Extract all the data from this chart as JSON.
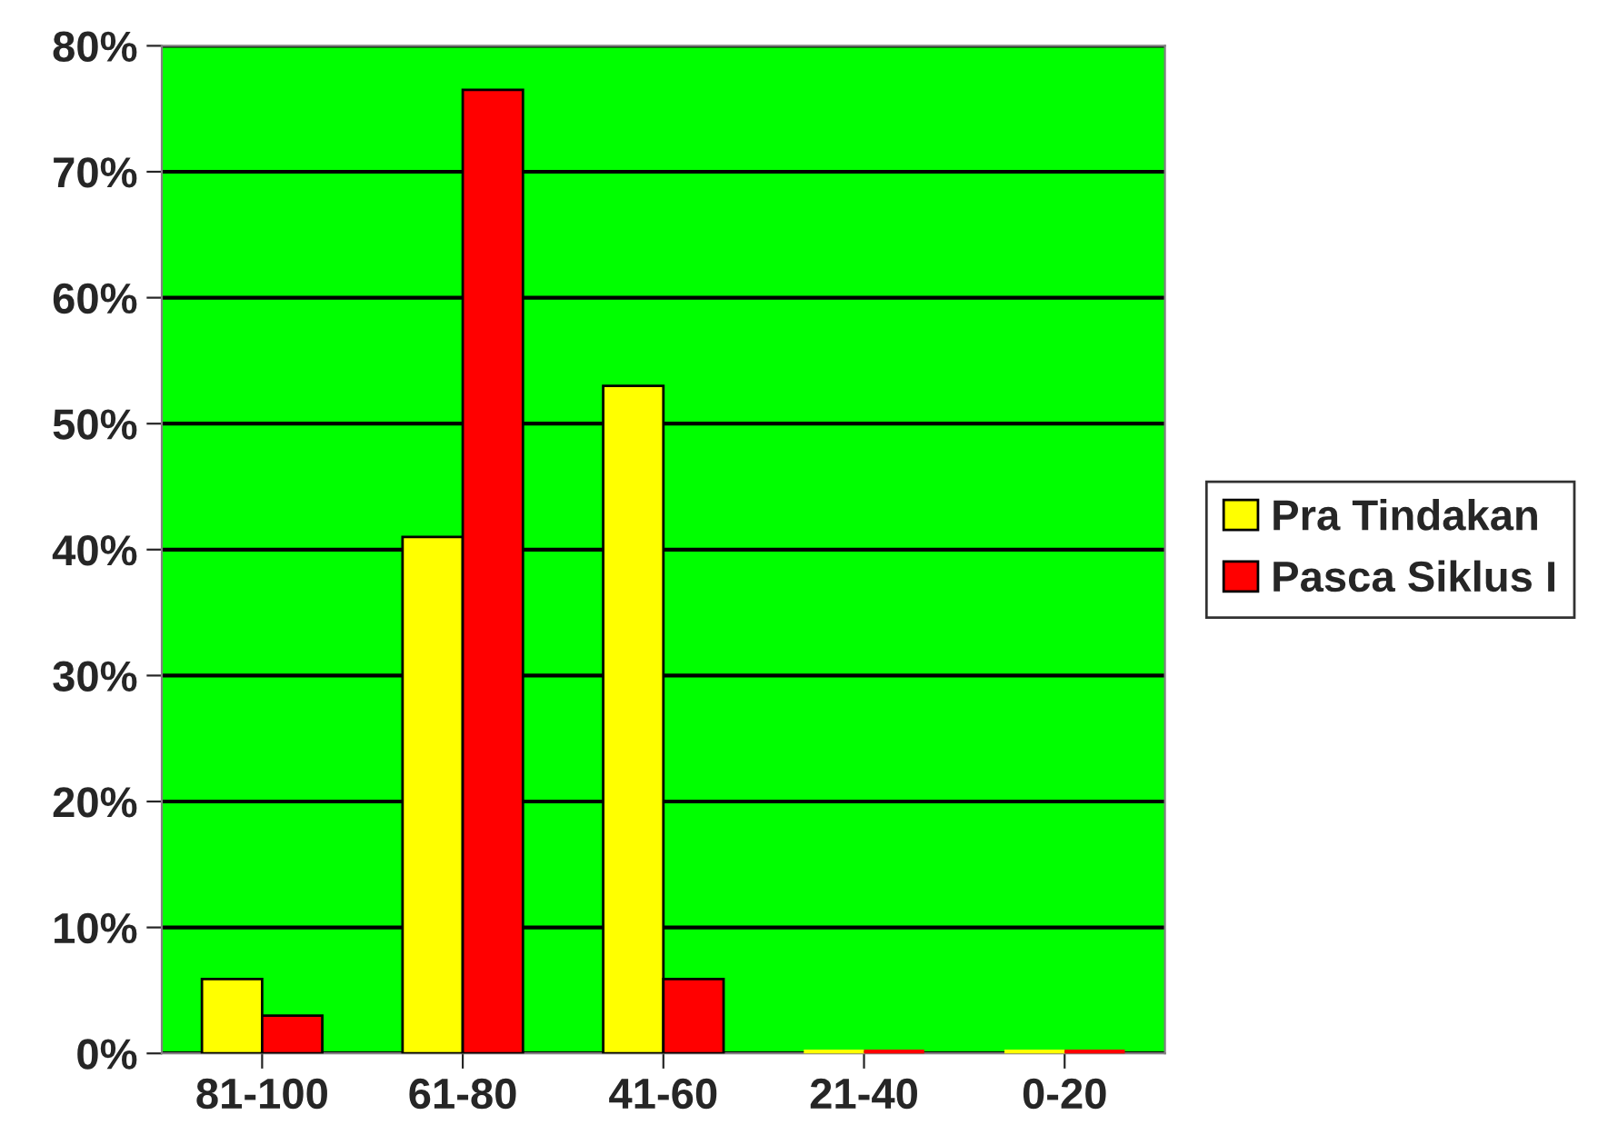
{
  "chart_data": {
    "type": "bar",
    "categories": [
      "81-100",
      "61-80",
      "41-60",
      "21-40",
      "0-20"
    ],
    "series": [
      {
        "name": "Pra Tindakan",
        "color": "#ffff00",
        "values": [
          5.9,
          41,
          53,
          0,
          0
        ]
      },
      {
        "name": "Pasca Siklus I",
        "color": "#ff0000",
        "values": [
          3,
          76.5,
          5.9,
          0,
          0
        ]
      }
    ],
    "ylim": [
      0,
      80
    ],
    "yticks": [
      {
        "value": 0,
        "label": "0%"
      },
      {
        "value": 10,
        "label": "10%"
      },
      {
        "value": 20,
        "label": "20%"
      },
      {
        "value": 30,
        "label": "30%"
      },
      {
        "value": 40,
        "label": "40%"
      },
      {
        "value": 50,
        "label": "50%"
      },
      {
        "value": 60,
        "label": "60%"
      },
      {
        "value": 70,
        "label": "70%"
      },
      {
        "value": 80,
        "label": "80%"
      }
    ],
    "grid": "y",
    "legend": "right"
  }
}
